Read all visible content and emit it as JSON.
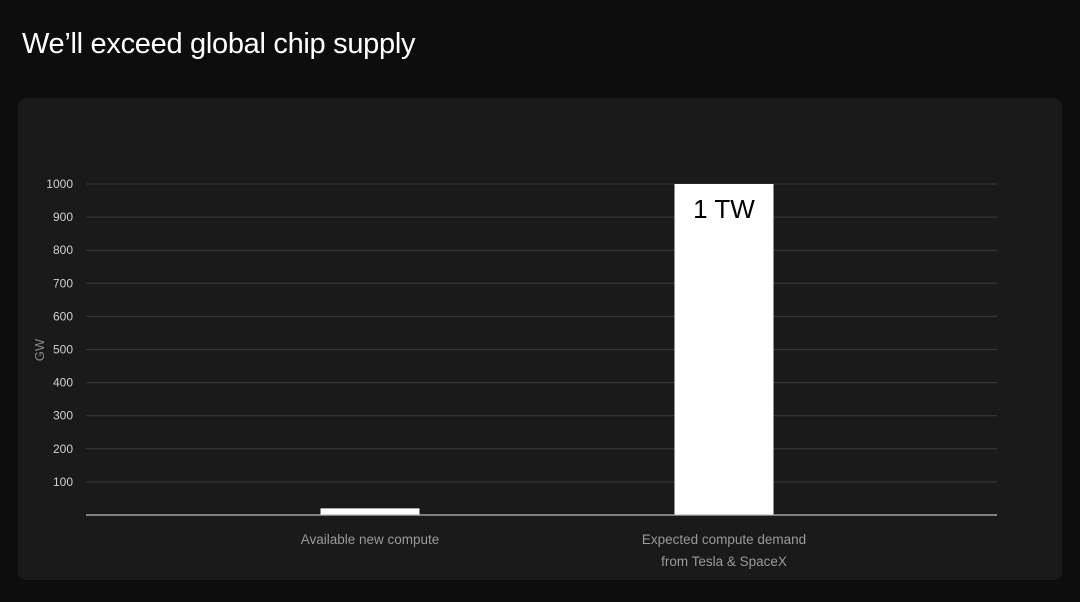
{
  "title": "We’ll exceed global chip supply",
  "chart_data": {
    "type": "bar",
    "title": "",
    "ylabel": "GW",
    "xlabel": "",
    "ylim": [
      0,
      1000
    ],
    "yticks": [
      100,
      200,
      300,
      400,
      500,
      600,
      700,
      800,
      900,
      1000
    ],
    "grid": true,
    "categories": [
      [
        "Available new compute"
      ],
      [
        "Expected compute demand",
        "from Tesla & SpaceX"
      ]
    ],
    "values": [
      20,
      1000
    ],
    "data_labels": [
      "",
      "1 TW"
    ],
    "colors": {
      "bar": "#ffffff",
      "grid": "#3a3a3a",
      "panel": "#1a1a1a",
      "background": "#0d0d0d"
    }
  }
}
